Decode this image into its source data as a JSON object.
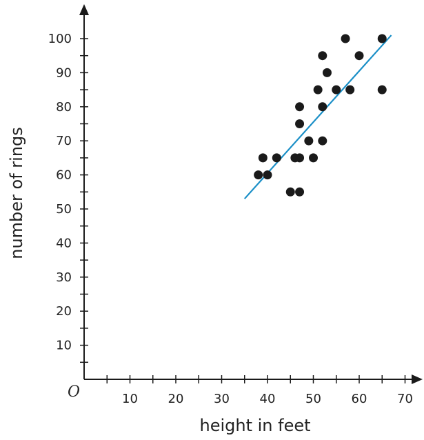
{
  "chart_data": {
    "type": "scatter",
    "xlabel": "height in feet",
    "ylabel": "number of rings",
    "origin_label": "O",
    "xlim": [
      0,
      70
    ],
    "ylim": [
      0,
      100
    ],
    "x_ticks": [
      10,
      20,
      30,
      40,
      50,
      60,
      70
    ],
    "y_ticks": [
      10,
      20,
      30,
      40,
      50,
      60,
      70,
      80,
      90,
      100
    ],
    "x_minor_step": 5,
    "y_minor_step": 5,
    "grid": false,
    "colors": {
      "points": "#1a1a1a",
      "trendline": "#1a8fc7",
      "axes": "#1a1a1a"
    },
    "points": [
      {
        "x": 38,
        "y": 60
      },
      {
        "x": 39,
        "y": 65
      },
      {
        "x": 40,
        "y": 60
      },
      {
        "x": 42,
        "y": 65
      },
      {
        "x": 45,
        "y": 55
      },
      {
        "x": 46,
        "y": 65
      },
      {
        "x": 47,
        "y": 55
      },
      {
        "x": 47,
        "y": 65
      },
      {
        "x": 47,
        "y": 75
      },
      {
        "x": 47,
        "y": 80
      },
      {
        "x": 49,
        "y": 70
      },
      {
        "x": 50,
        "y": 65
      },
      {
        "x": 51,
        "y": 85
      },
      {
        "x": 52,
        "y": 95
      },
      {
        "x": 52,
        "y": 80
      },
      {
        "x": 52,
        "y": 70
      },
      {
        "x": 53,
        "y": 90
      },
      {
        "x": 55,
        "y": 85
      },
      {
        "x": 57,
        "y": 100
      },
      {
        "x": 58,
        "y": 85
      },
      {
        "x": 60,
        "y": 95
      },
      {
        "x": 65,
        "y": 100
      },
      {
        "x": 65,
        "y": 85
      }
    ],
    "trendline": {
      "x": [
        35,
        67
      ],
      "y": [
        53,
        101
      ]
    }
  }
}
